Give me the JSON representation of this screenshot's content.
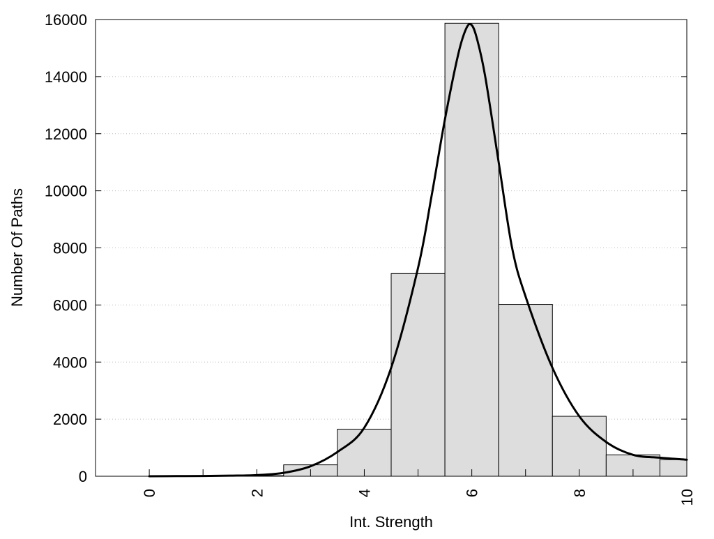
{
  "chart_data": {
    "type": "bar",
    "title": "",
    "xlabel": "Int. Strength",
    "ylabel": "Number Of Paths",
    "xlim": [
      -1,
      10
    ],
    "ylim": [
      0,
      16000
    ],
    "xticks": [
      0,
      2,
      4,
      6,
      8,
      10
    ],
    "yticks": [
      0,
      2000,
      4000,
      6000,
      8000,
      10000,
      12000,
      14000,
      16000
    ],
    "grid": "horizontal-dotted",
    "bar_color": "#dddddd",
    "bar_edge_color": "#000000",
    "curve_color": "#000000",
    "bars": {
      "x": [
        0,
        1,
        2,
        3,
        4,
        5,
        6,
        7,
        8,
        9,
        10
      ],
      "values": [
        0,
        5,
        20,
        400,
        1650,
        7100,
        15870,
        6020,
        2100,
        750,
        580
      ]
    },
    "curve": {
      "x": [
        0,
        0.5,
        1,
        1.5,
        2,
        2.5,
        3,
        3.5,
        4,
        4.5,
        5,
        5.25,
        5.5,
        5.75,
        5.9,
        6,
        6.1,
        6.25,
        6.5,
        6.75,
        7,
        7.5,
        8,
        8.5,
        9,
        9.5,
        10
      ],
      "y": [
        0,
        5,
        10,
        20,
        40,
        120,
        350,
        850,
        1700,
        3800,
        7300,
        9800,
        12500,
        14800,
        15700,
        15800,
        15300,
        14000,
        11000,
        8000,
        6300,
        3800,
        2100,
        1200,
        750,
        650,
        580
      ]
    }
  }
}
